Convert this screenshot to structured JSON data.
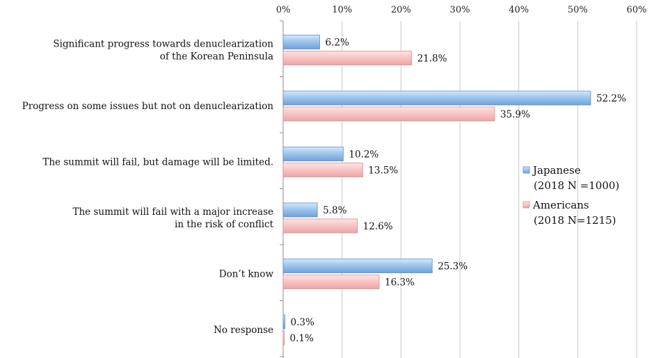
{
  "chart_data": {
    "type": "bar",
    "orientation": "horizontal",
    "title": "",
    "xlabel": "",
    "ylabel": "",
    "xlim": [
      0,
      60
    ],
    "ticks": [
      0,
      10,
      20,
      30,
      40,
      50,
      60
    ],
    "tick_labels": [
      "0%",
      "10%",
      "20%",
      "30%",
      "40%",
      "50%",
      "60%"
    ],
    "grid": true,
    "legend_position": "right",
    "categories": [
      [
        "Significant progress towards denuclearization",
        "of the Korean Peninsula"
      ],
      [
        "Progress on some issues but not on denuclearization"
      ],
      [
        "The summit will fail, but damage will be limited."
      ],
      [
        "The summit will fail with a major increase",
        "in the risk of conflict"
      ],
      [
        "Don’t know"
      ],
      [
        "No response"
      ]
    ],
    "series": [
      {
        "name": "Japanese",
        "legend": [
          "Japanese",
          "(2018 N =1000)"
        ],
        "color": "#7fb3e6",
        "values": [
          6.2,
          52.2,
          10.2,
          5.8,
          25.3,
          0.3
        ],
        "labels": [
          "6.2%",
          "52.2%",
          "10.2%",
          "5.8%",
          "25.3%",
          "0.3%"
        ]
      },
      {
        "name": "Americans",
        "legend": [
          "Americans",
          "(2018 N=1215)"
        ],
        "color": "#f4b6b6",
        "values": [
          21.8,
          35.9,
          13.5,
          12.6,
          16.3,
          0.1
        ],
        "labels": [
          "21.8%",
          "35.9%",
          "13.5%",
          "12.6%",
          "16.3%",
          "0.1%"
        ]
      }
    ]
  }
}
